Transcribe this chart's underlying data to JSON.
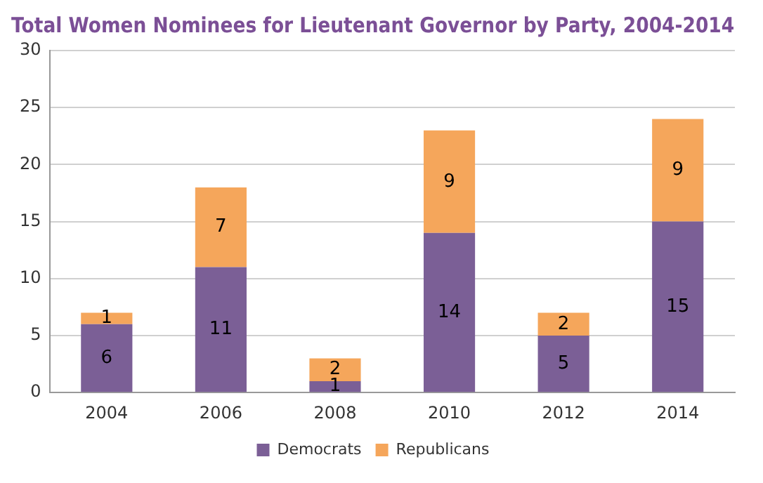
{
  "chart_data": {
    "type": "bar",
    "title": "Total Women Nominees for Lieutenant Governor by Party, 2004-2014",
    "categories": [
      "2004",
      "2006",
      "2008",
      "2010",
      "2012",
      "2014"
    ],
    "series": [
      {
        "name": "Democrats",
        "color": "#7b5f96",
        "values": [
          6,
          11,
          1,
          14,
          5,
          15
        ]
      },
      {
        "name": "Republicans",
        "color": "#f5a65b",
        "values": [
          1,
          7,
          2,
          9,
          2,
          9
        ]
      }
    ],
    "stacked": true,
    "ylim": [
      0,
      30
    ],
    "yticks": [
      0,
      5,
      10,
      15,
      20,
      25,
      30
    ],
    "grid": "y",
    "legend": "bottom",
    "data_labels": true
  }
}
